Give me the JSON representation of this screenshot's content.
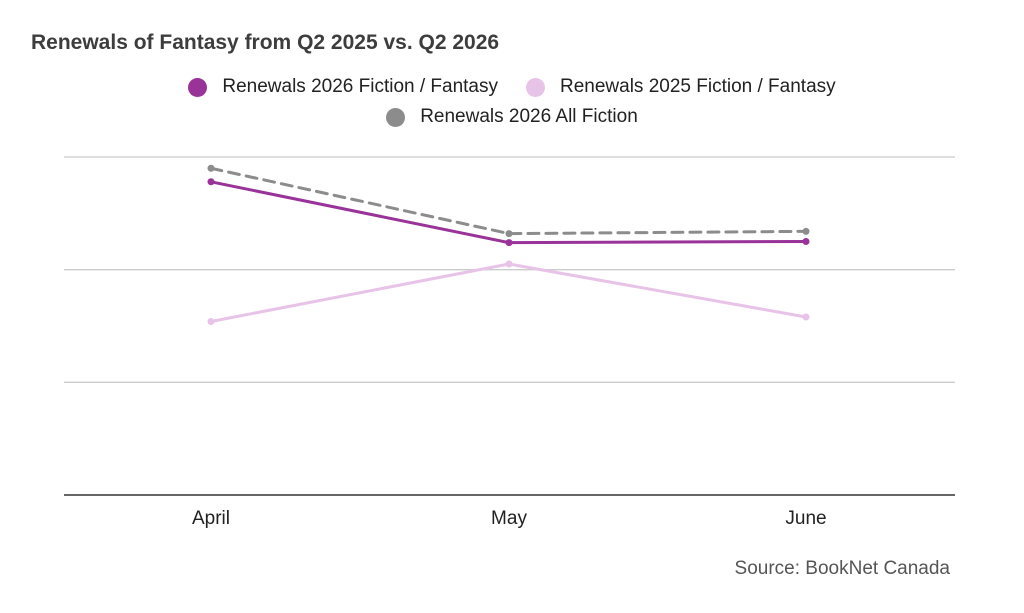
{
  "chart_data": {
    "type": "line",
    "title": "Renewals of Fantasy from Q2 2025 vs. Q2 2026",
    "categories": [
      "April",
      "May",
      "June"
    ],
    "series": [
      {
        "name": "Renewals 2026 Fiction / Fantasy",
        "values": [
          2.78,
          2.24,
          2.25
        ],
        "color": "#993399",
        "dashed": false
      },
      {
        "name": "Renewals 2025 Fiction / Fantasy",
        "values": [
          1.54,
          2.05,
          1.58
        ],
        "color": "#e8c3e8",
        "dashed": false
      },
      {
        "name": "Renewals 2026 All Fiction",
        "values": [
          2.9,
          2.32,
          2.34
        ],
        "color": "#8c8c8c",
        "dashed": true
      }
    ],
    "ylim": [
      0,
      3
    ],
    "grid": true,
    "legend_position": "top",
    "source": "Source: BookNet Canada"
  }
}
